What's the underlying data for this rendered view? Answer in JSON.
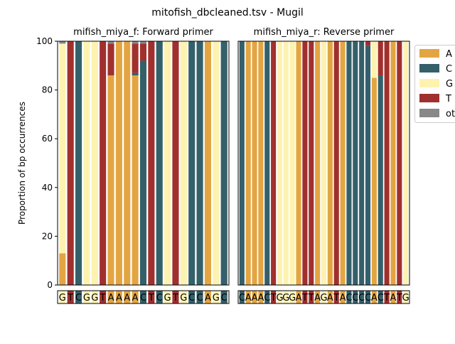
{
  "figure": {
    "suptitle": "mitofish_dbcleaned.tsv - Mugil"
  },
  "colors": {
    "A": "#e3a542",
    "C": "#34606a",
    "G": "#fdf2b0",
    "T": "#a0302e",
    "other": "#888888"
  },
  "chart_data": [
    {
      "type": "bar",
      "stacked": true,
      "title": "mifish_miya_f: Forward primer",
      "ylabel": "Proportion of bp occurrences",
      "ylim": [
        0,
        100
      ],
      "yticks": [
        0,
        20,
        40,
        60,
        80,
        100
      ],
      "sequence": [
        "G",
        "T",
        "C",
        "G",
        "G",
        "T",
        "A",
        "A",
        "A",
        "A",
        "C",
        "T",
        "C",
        "G",
        "T",
        "G",
        "C",
        "C",
        "A",
        "G",
        "C"
      ],
      "series": [
        {
          "name": "A",
          "values": [
            13,
            0,
            0,
            0,
            0,
            0,
            86,
            100,
            100,
            86,
            0,
            0,
            0,
            0,
            0,
            0,
            0,
            0,
            100,
            0,
            0
          ]
        },
        {
          "name": "C",
          "values": [
            0,
            0,
            100,
            0,
            0,
            0,
            0,
            0,
            0,
            1,
            92,
            0,
            100,
            0,
            0,
            0,
            100,
            100,
            0,
            0,
            100
          ]
        },
        {
          "name": "G",
          "values": [
            86,
            0,
            0,
            100,
            100,
            0,
            0,
            0,
            0,
            0,
            0,
            0,
            0,
            100,
            0,
            100,
            0,
            0,
            0,
            100,
            0
          ]
        },
        {
          "name": "T",
          "values": [
            0,
            100,
            0,
            0,
            0,
            100,
            13,
            0,
            0,
            12,
            7,
            100,
            0,
            0,
            100,
            0,
            0,
            0,
            0,
            0,
            0
          ]
        },
        {
          "name": "other",
          "values": [
            1,
            0,
            0,
            0,
            0,
            0,
            1,
            0,
            0,
            1,
            1,
            0,
            0,
            0,
            0,
            0,
            0,
            0,
            0,
            0,
            0
          ]
        }
      ]
    },
    {
      "type": "bar",
      "stacked": true,
      "title": "mifish_miya_r: Reverse primer",
      "ylim": [
        0,
        100
      ],
      "sequence": [
        "C",
        "A",
        "A",
        "A",
        "C",
        "T",
        "G",
        "G",
        "G",
        "A",
        "T",
        "T",
        "A",
        "G",
        "A",
        "T",
        "A",
        "C",
        "C",
        "C",
        "C",
        "A",
        "C",
        "T",
        "A",
        "T",
        "G"
      ],
      "series": [
        {
          "name": "A",
          "values": [
            0,
            100,
            100,
            100,
            0,
            0,
            0,
            0,
            0,
            100,
            0,
            0,
            100,
            0,
            100,
            0,
            100,
            0,
            0,
            0,
            0,
            85,
            0,
            0,
            100,
            0,
            0
          ]
        },
        {
          "name": "C",
          "values": [
            100,
            0,
            0,
            0,
            100,
            0,
            0,
            0,
            0,
            0,
            0,
            0,
            0,
            0,
            0,
            0,
            0,
            100,
            100,
            100,
            98,
            0,
            86,
            0,
            0,
            0,
            0
          ]
        },
        {
          "name": "G",
          "values": [
            0,
            0,
            0,
            0,
            0,
            0,
            100,
            100,
            100,
            0,
            0,
            0,
            0,
            100,
            0,
            0,
            0,
            0,
            0,
            0,
            0,
            15,
            0,
            0,
            0,
            0,
            100
          ]
        },
        {
          "name": "T",
          "values": [
            0,
            0,
            0,
            0,
            0,
            100,
            0,
            0,
            0,
            0,
            100,
            100,
            0,
            0,
            0,
            100,
            0,
            0,
            0,
            0,
            2,
            0,
            14,
            100,
            0,
            100,
            0
          ]
        },
        {
          "name": "other",
          "values": [
            0,
            0,
            0,
            0,
            0,
            0,
            0,
            0,
            0,
            0,
            0,
            0,
            0,
            0,
            0,
            0,
            0,
            0,
            0,
            0,
            0,
            0,
            0,
            0,
            0,
            0,
            0
          ]
        }
      ]
    }
  ],
  "legend": {
    "placement": "right",
    "entries": [
      "A",
      "C",
      "G",
      "T",
      "other"
    ]
  }
}
